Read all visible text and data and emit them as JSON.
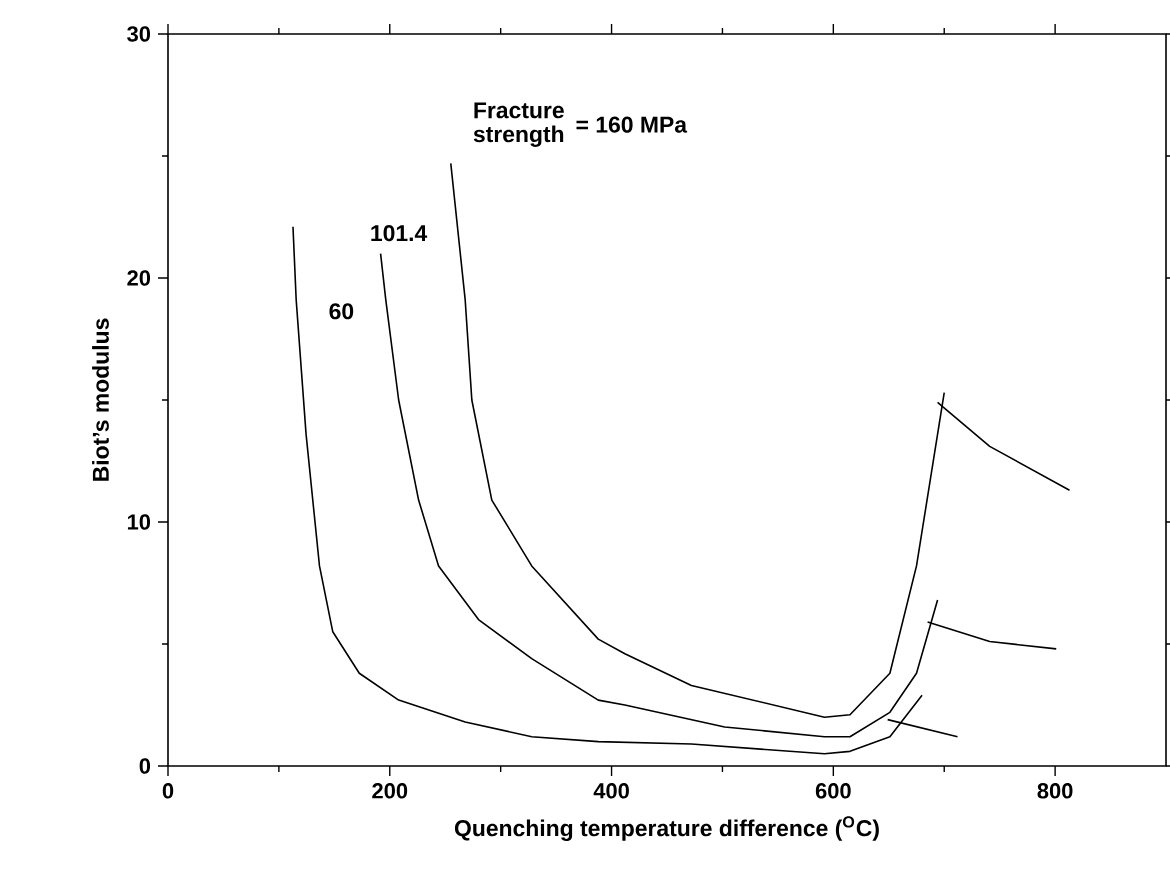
{
  "chart_data": {
    "type": "line",
    "xlabel": "Quenching temperature difference ($^{O}$C)",
    "ylabel": "Biot’s modulus",
    "xlim": [
      0,
      900
    ],
    "ylim": [
      0,
      30
    ],
    "xticks": [
      0,
      200,
      400,
      600,
      800
    ],
    "yticks": [
      0,
      10,
      20,
      30
    ],
    "grid": false,
    "marker": "none",
    "line_style": "solid",
    "series": [
      {
        "color": "#000000",
        "x": [
          112.7,
          115.6,
          124.5,
          136.6,
          148.6,
          172.5,
          208,
          268,
          328,
          388,
          472,
          592,
          615,
          651,
          680
        ],
        "values": [
          22.1,
          19.1,
          13.6,
          8.2,
          5.5,
          3.8,
          2.7,
          1.8,
          1.2,
          1.0,
          0.9,
          0.5,
          0.6,
          1.2,
          2.9
        ]
      },
      {
        "color": "#000000",
        "x": [
          649,
          712
        ],
        "values": [
          1.9,
          1.2
        ]
      },
      {
        "color": "#000000",
        "x": [
          191.7,
          196.4,
          208,
          226,
          244,
          280,
          328,
          388,
          412,
          502,
          592,
          615,
          651,
          675,
          694
        ],
        "values": [
          21.0,
          19.1,
          15.0,
          10.9,
          8.2,
          6.0,
          4.4,
          2.7,
          2.5,
          1.6,
          1.2,
          1.2,
          2.2,
          3.8,
          6.8
        ]
      },
      {
        "color": "#000000",
        "x": [
          685,
          741,
          801
        ],
        "values": [
          5.9,
          5.1,
          4.8
        ]
      },
      {
        "color": "#000000",
        "x": [
          255,
          268,
          274,
          292,
          328,
          388,
          412,
          472,
          592,
          615,
          651,
          675,
          700
        ],
        "values": [
          24.7,
          19.1,
          15.0,
          10.9,
          8.2,
          5.2,
          4.6,
          3.3,
          2.0,
          2.1,
          3.8,
          8.2,
          15.3
        ]
      },
      {
        "color": "#000000",
        "x": [
          694,
          741,
          813
        ],
        "values": [
          14.9,
          13.1,
          11.3
        ]
      }
    ],
    "annotations": [
      "60",
      "101.4",
      "Fracture strength",
      "= 160 MPa"
    ]
  }
}
